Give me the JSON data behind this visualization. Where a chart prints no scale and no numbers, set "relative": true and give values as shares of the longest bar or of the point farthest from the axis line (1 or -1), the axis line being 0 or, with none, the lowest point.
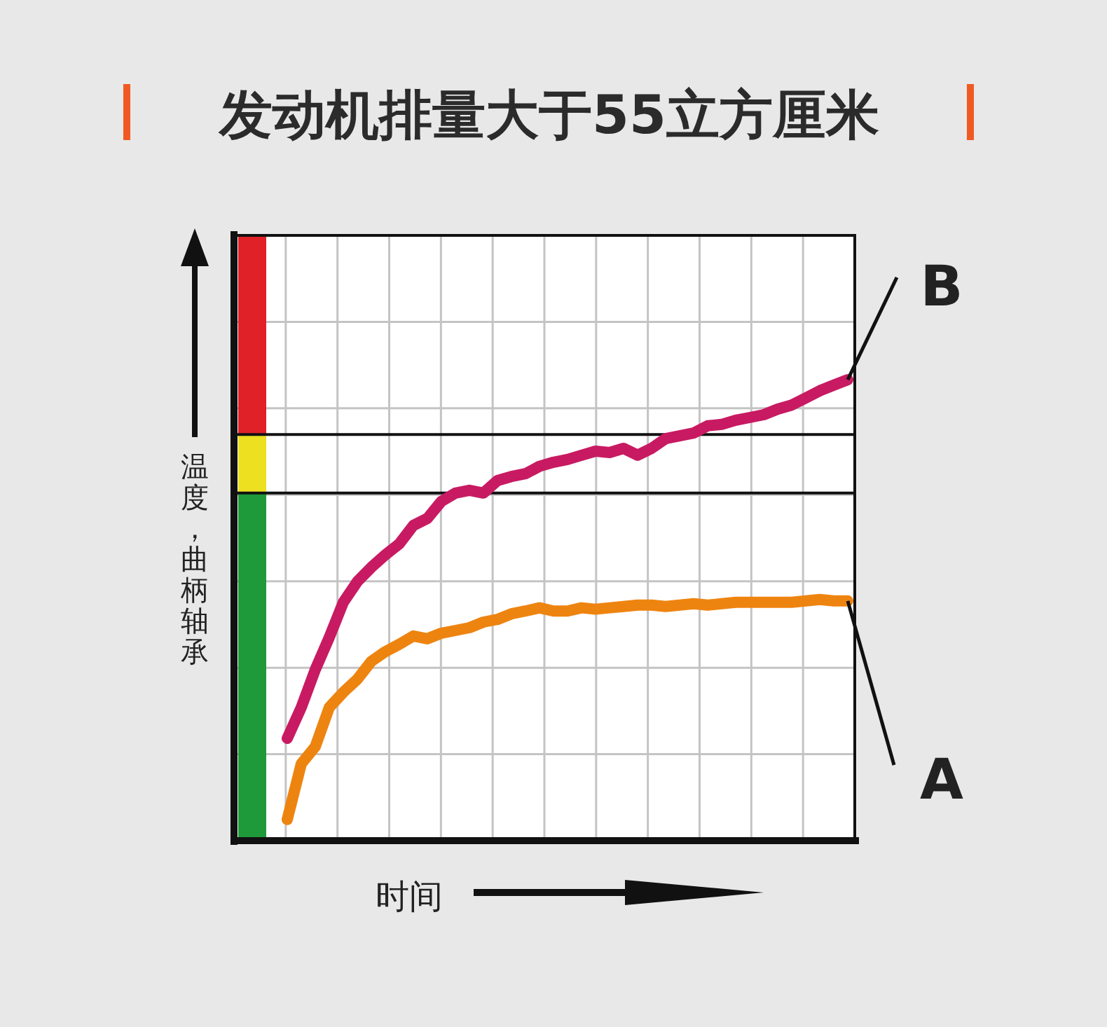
{
  "chart_data": {
    "type": "line",
    "title": "发动机排量大于55立方厘米",
    "xlabel": "时间",
    "ylabel": "温度，曲柄轴承",
    "relative": true,
    "grid": true,
    "legend": false,
    "marker": "none",
    "line_style": "solid",
    "categories": [
      null,
      null,
      null,
      null,
      null,
      null,
      null,
      null,
      null,
      null,
      null,
      null,
      null,
      null,
      null,
      null,
      null,
      null,
      null,
      null,
      null,
      null,
      null,
      null,
      null,
      null,
      null,
      null,
      null,
      null,
      null,
      null,
      null,
      null,
      null,
      null,
      null,
      null,
      null,
      null,
      null
    ],
    "series": [
      {
        "name": "B",
        "color": "#c81a62",
        "values": [
          0.222,
          0.289,
          0.371,
          0.441,
          0.517,
          0.562,
          0.593,
          0.62,
          0.644,
          0.684,
          0.699,
          0.736,
          0.754,
          0.76,
          0.754,
          0.781,
          0.79,
          0.796,
          0.812,
          0.821,
          0.827,
          0.836,
          0.845,
          0.842,
          0.851,
          0.836,
          0.851,
          0.872,
          0.878,
          0.884,
          0.9,
          0.903,
          0.912,
          0.918,
          0.924,
          0.936,
          0.945,
          0.96,
          0.976,
          0.988,
          1
        ]
      },
      {
        "name": "A",
        "color": "#ee8410",
        "values": [
          0.046,
          0.167,
          0.204,
          0.289,
          0.322,
          0.35,
          0.389,
          0.41,
          0.426,
          0.444,
          0.438,
          0.45,
          0.456,
          0.462,
          0.474,
          0.48,
          0.492,
          0.498,
          0.505,
          0.498,
          0.498,
          0.505,
          0.502,
          0.505,
          0.508,
          0.511,
          0.511,
          0.508,
          0.511,
          0.514,
          0.511,
          0.514,
          0.517,
          0.517,
          0.517,
          0.517,
          0.517,
          0.52,
          0.523,
          0.52,
          0.52
        ]
      }
    ],
    "ref_lines": [
      {
        "axis": "y",
        "value": 0.881,
        "color": "#111111"
      },
      {
        "axis": "y",
        "value": 0.754,
        "color": "#111111"
      }
    ]
  }
}
